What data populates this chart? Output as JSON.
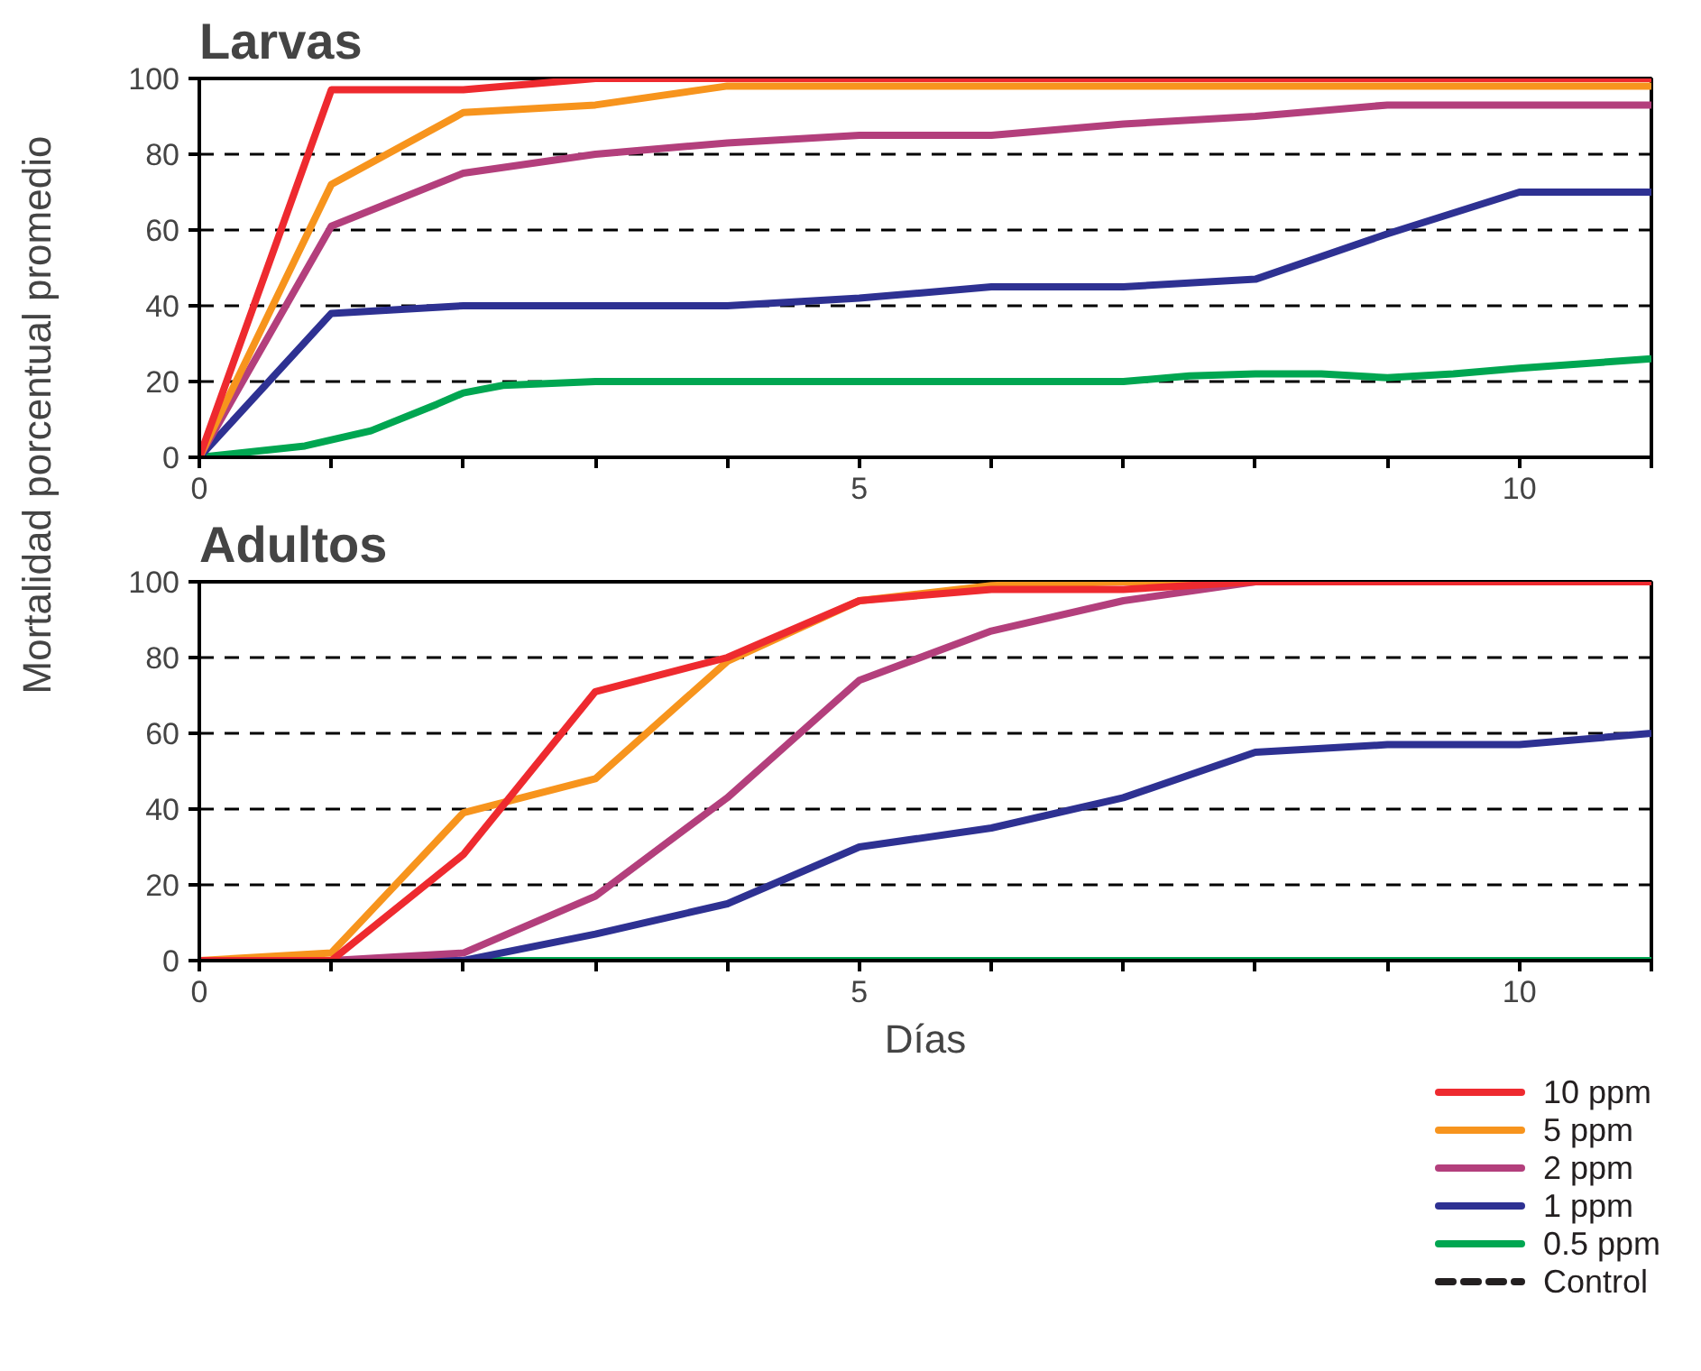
{
  "chart_data": [
    {
      "type": "line",
      "title": "Larvas",
      "ylabel": "Mortalidad porcentual promedio",
      "x": [
        0,
        1,
        2,
        3,
        4,
        5,
        6,
        7,
        8,
        9,
        10,
        11
      ],
      "xlim": [
        0,
        11
      ],
      "ylim": [
        0,
        100
      ],
      "xticks": [
        0,
        {
          "value": 1,
          "label": null
        },
        {
          "value": 2,
          "label": null
        },
        {
          "value": 3,
          "label": null
        },
        {
          "value": 4,
          "label": null
        },
        5,
        {
          "value": 6,
          "label": null
        },
        {
          "value": 7,
          "label": null
        },
        {
          "value": 8,
          "label": null
        },
        {
          "value": 9,
          "label": null
        },
        10,
        {
          "value": 11,
          "label": null
        }
      ],
      "yticks": [
        0,
        20,
        40,
        60,
        80,
        100
      ],
      "grid": "y",
      "line_style": "solid",
      "marker": "none",
      "series": [
        {
          "color": "#ee2a2f",
          "values": [
            0,
            97,
            97,
            100,
            100,
            100,
            100,
            100,
            100,
            100,
            100,
            100
          ]
        },
        {
          "color": "#f7941d",
          "values": [
            0,
            72,
            91,
            93,
            98,
            98,
            98,
            98,
            98,
            98,
            98,
            98
          ]
        },
        {
          "color": "#b33f7c",
          "values": [
            0,
            61,
            75,
            80,
            83,
            85,
            85,
            88,
            90,
            93,
            93,
            93
          ]
        },
        {
          "color": "#2e3192",
          "values": [
            0,
            38,
            40,
            40,
            40,
            42,
            45,
            45,
            47,
            59,
            70,
            70
          ]
        },
        {
          "color": "#00a651",
          "x": [
            0,
            0.8,
            1.3,
            1.8,
            2,
            2.3,
            3,
            4,
            5,
            6,
            7,
            7.5,
            8,
            8.5,
            9,
            9.5,
            10,
            11
          ],
          "values": [
            0,
            3,
            7,
            14,
            17,
            19,
            20,
            20,
            20,
            20,
            20,
            21.5,
            22,
            22,
            21,
            22,
            23.5,
            26
          ]
        }
      ]
    },
    {
      "type": "line",
      "title": "Adultos",
      "xlabel": "Días",
      "x": [
        0,
        1,
        2,
        3,
        4,
        5,
        6,
        7,
        8,
        9,
        10,
        11
      ],
      "xlim": [
        0,
        11
      ],
      "ylim": [
        0,
        100
      ],
      "xticks": [
        0,
        {
          "value": 1,
          "label": null
        },
        {
          "value": 2,
          "label": null
        },
        {
          "value": 3,
          "label": null
        },
        {
          "value": 4,
          "label": null
        },
        5,
        {
          "value": 6,
          "label": null
        },
        {
          "value": 7,
          "label": null
        },
        {
          "value": 8,
          "label": null
        },
        {
          "value": 9,
          "label": null
        },
        10,
        {
          "value": 11,
          "label": null
        }
      ],
      "yticks": [
        0,
        20,
        40,
        60,
        80,
        100
      ],
      "grid": "y",
      "legend": "bottom right",
      "line_style": "solid",
      "marker": "none",
      "series": [
        {
          "name": "10 ppm",
          "color": "#ee2a2f",
          "values": [
            0,
            0,
            28,
            71,
            80,
            95,
            98,
            98,
            100,
            100,
            100,
            100
          ]
        },
        {
          "name": "5 ppm",
          "color": "#f7941d",
          "values": [
            0,
            2,
            39,
            48,
            79,
            95,
            99,
            100,
            100,
            null,
            null,
            null
          ]
        },
        {
          "name": "2 ppm",
          "color": "#b33f7c",
          "values": [
            0,
            0,
            2,
            17,
            43,
            74,
            87,
            95,
            100,
            null,
            null,
            null
          ]
        },
        {
          "name": "1 ppm",
          "color": "#2e3192",
          "values": [
            0,
            0,
            0,
            7,
            15,
            30,
            35,
            43,
            55,
            57,
            57,
            60
          ]
        },
        {
          "name": "0.5 ppm",
          "color": "#00a651",
          "values": [
            0,
            0,
            0,
            0,
            0,
            0,
            0,
            0,
            0,
            0,
            0,
            0
          ]
        },
        {
          "name": "Control",
          "color": "#231f20",
          "line_style": "dashed",
          "values": [
            null,
            null,
            null,
            null,
            null,
            null,
            null,
            null,
            null,
            null,
            null,
            null
          ]
        }
      ]
    }
  ]
}
